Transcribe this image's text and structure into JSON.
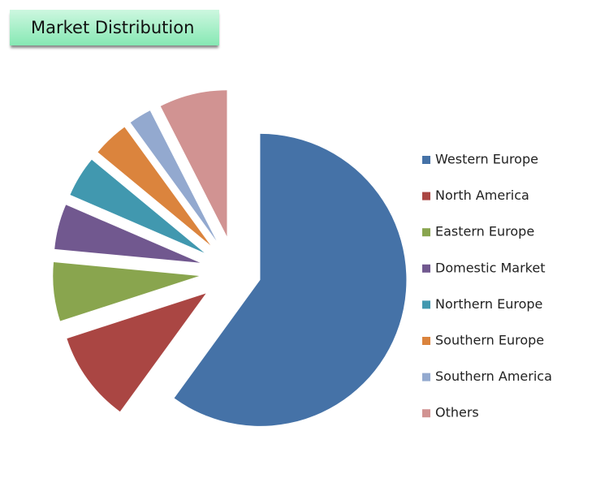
{
  "chart_data": {
    "type": "pie",
    "title": "Market Distribution",
    "categories": [
      "Western Europe",
      "North America",
      "Eastern Europe",
      "Domestic Market",
      "Northern Europe",
      "Southern Europe",
      "Southern America",
      "Others"
    ],
    "values": [
      60,
      10,
      6.5,
      5,
      4.5,
      4,
      2.5,
      7.5
    ],
    "colors": [
      "#4572a7",
      "#aa4643",
      "#89a54e",
      "#71588f",
      "#4198af",
      "#db843d",
      "#93a9cf",
      "#d19392"
    ],
    "legend": "right"
  }
}
